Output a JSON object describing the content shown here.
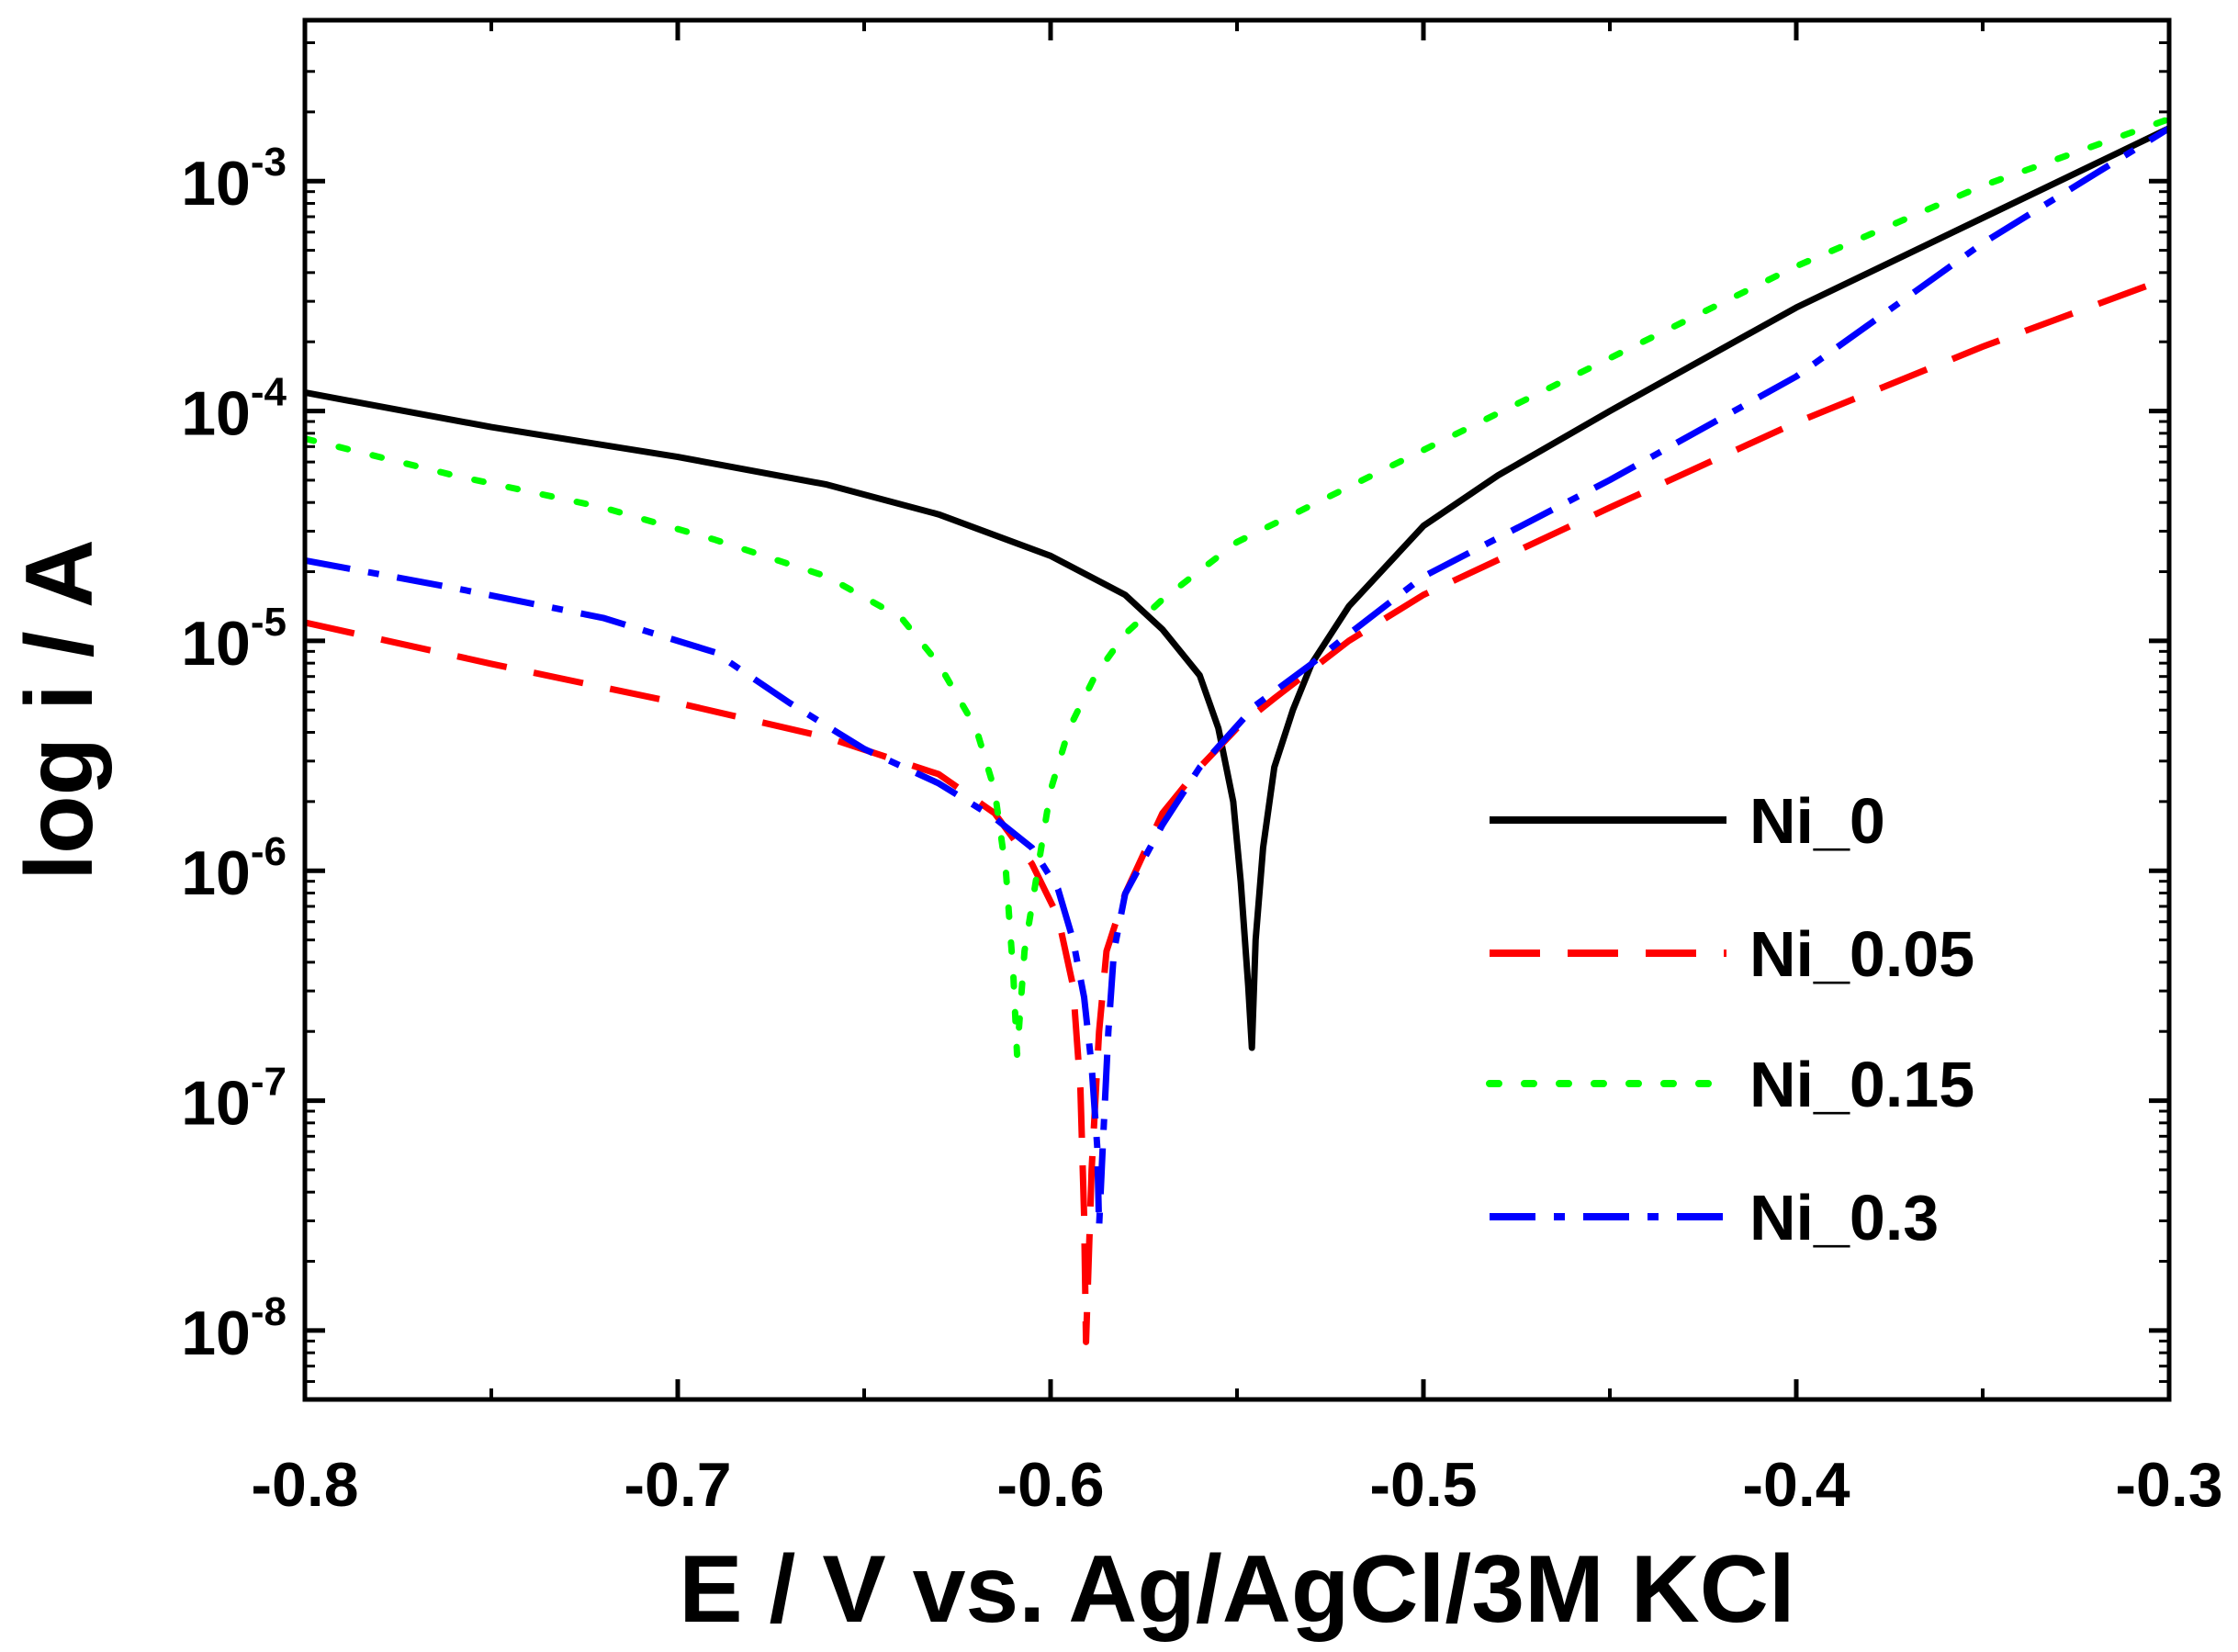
{
  "chart_data": {
    "type": "line",
    "title": "",
    "xlabel": "E /  V vs. Ag/AgCl/3M KCl",
    "ylabel": "log i  / A",
    "xlim": [
      -0.8,
      -0.3
    ],
    "ylim_log10": [
      -8.3,
      -2.3
    ],
    "y_scale": "log",
    "x_ticks": [
      -0.8,
      -0.7,
      -0.6,
      -0.5,
      -0.4,
      -0.3
    ],
    "x_tick_labels": [
      "-0.8",
      "-0.7",
      "-0.6",
      "-0.5",
      "-0.4",
      "-0.3"
    ],
    "y_ticks_log10": [
      -8,
      -7,
      -6,
      -5,
      -4,
      -3
    ],
    "y_tick_base": "10",
    "y_tick_exponents": [
      "-8",
      "-7",
      "-6",
      "-5",
      "-4",
      "-3"
    ],
    "legend_position": "right",
    "series": [
      {
        "name": "Ni_0",
        "color": "#000000",
        "style": "solid",
        "points": [
          [
            -0.8,
            -3.92
          ],
          [
            -0.75,
            -4.07
          ],
          [
            -0.7,
            -4.2
          ],
          [
            -0.66,
            -4.32
          ],
          [
            -0.63,
            -4.45
          ],
          [
            -0.6,
            -4.63
          ],
          [
            -0.58,
            -4.8
          ],
          [
            -0.57,
            -4.95
          ],
          [
            -0.56,
            -5.15
          ],
          [
            -0.555,
            -5.38
          ],
          [
            -0.551,
            -5.7
          ],
          [
            -0.549,
            -6.05
          ],
          [
            -0.547,
            -6.5
          ],
          [
            -0.546,
            -6.77
          ],
          [
            -0.545,
            -6.3
          ],
          [
            -0.543,
            -5.9
          ],
          [
            -0.54,
            -5.55
          ],
          [
            -0.535,
            -5.3
          ],
          [
            -0.53,
            -5.1
          ],
          [
            -0.52,
            -4.85
          ],
          [
            -0.5,
            -4.5
          ],
          [
            -0.48,
            -4.28
          ],
          [
            -0.45,
            -4.0
          ],
          [
            -0.4,
            -3.55
          ],
          [
            -0.35,
            -3.16
          ],
          [
            -0.3,
            -2.77
          ]
        ]
      },
      {
        "name": "Ni_0.05",
        "color": "#ff0000",
        "style": "dashed",
        "points": [
          [
            -0.8,
            -4.92
          ],
          [
            -0.75,
            -5.1
          ],
          [
            -0.7,
            -5.27
          ],
          [
            -0.66,
            -5.42
          ],
          [
            -0.63,
            -5.58
          ],
          [
            -0.615,
            -5.75
          ],
          [
            -0.605,
            -5.97
          ],
          [
            -0.598,
            -6.2
          ],
          [
            -0.594,
            -6.5
          ],
          [
            -0.592,
            -6.95
          ],
          [
            -0.591,
            -7.5
          ],
          [
            -0.5905,
            -8.05
          ],
          [
            -0.589,
            -7.3
          ],
          [
            -0.587,
            -6.7
          ],
          [
            -0.585,
            -6.35
          ],
          [
            -0.58,
            -6.1
          ],
          [
            -0.57,
            -5.75
          ],
          [
            -0.56,
            -5.55
          ],
          [
            -0.55,
            -5.38
          ],
          [
            -0.54,
            -5.25
          ],
          [
            -0.52,
            -5.0
          ],
          [
            -0.5,
            -4.8
          ],
          [
            -0.45,
            -4.42
          ],
          [
            -0.4,
            -4.05
          ],
          [
            -0.35,
            -3.72
          ],
          [
            -0.3,
            -3.42
          ]
        ]
      },
      {
        "name": "Ni_0.15",
        "color": "#00ff00",
        "style": "dotted",
        "points": [
          [
            -0.8,
            -4.12
          ],
          [
            -0.76,
            -4.28
          ],
          [
            -0.72,
            -4.42
          ],
          [
            -0.69,
            -4.56
          ],
          [
            -0.66,
            -4.72
          ],
          [
            -0.64,
            -4.9
          ],
          [
            -0.63,
            -5.1
          ],
          [
            -0.62,
            -5.38
          ],
          [
            -0.615,
            -5.65
          ],
          [
            -0.612,
            -6.0
          ],
          [
            -0.61,
            -6.45
          ],
          [
            -0.609,
            -6.8
          ],
          [
            -0.607,
            -6.35
          ],
          [
            -0.603,
            -5.95
          ],
          [
            -0.6,
            -5.65
          ],
          [
            -0.595,
            -5.38
          ],
          [
            -0.588,
            -5.15
          ],
          [
            -0.58,
            -4.97
          ],
          [
            -0.57,
            -4.82
          ],
          [
            -0.55,
            -4.57
          ],
          [
            -0.5,
            -4.17
          ],
          [
            -0.45,
            -3.77
          ],
          [
            -0.4,
            -3.37
          ],
          [
            -0.35,
            -3.02
          ],
          [
            -0.3,
            -2.73
          ]
        ]
      },
      {
        "name": "Ni_0.3",
        "color": "#0000ff",
        "style": "dashdot",
        "points": [
          [
            -0.8,
            -4.65
          ],
          [
            -0.76,
            -4.77
          ],
          [
            -0.72,
            -4.9
          ],
          [
            -0.69,
            -5.05
          ],
          [
            -0.67,
            -5.27
          ],
          [
            -0.65,
            -5.47
          ],
          [
            -0.63,
            -5.62
          ],
          [
            -0.615,
            -5.77
          ],
          [
            -0.605,
            -5.9
          ],
          [
            -0.598,
            -6.08
          ],
          [
            -0.594,
            -6.3
          ],
          [
            -0.591,
            -6.55
          ],
          [
            -0.589,
            -6.85
          ],
          [
            -0.5875,
            -7.2
          ],
          [
            -0.587,
            -7.55
          ],
          [
            -0.586,
            -7.2
          ],
          [
            -0.5845,
            -6.7
          ],
          [
            -0.583,
            -6.35
          ],
          [
            -0.58,
            -6.1
          ],
          [
            -0.57,
            -5.8
          ],
          [
            -0.56,
            -5.55
          ],
          [
            -0.545,
            -5.28
          ],
          [
            -0.53,
            -5.1
          ],
          [
            -0.52,
            -4.97
          ],
          [
            -0.5,
            -4.72
          ],
          [
            -0.45,
            -4.3
          ],
          [
            -0.4,
            -3.85
          ],
          [
            -0.35,
            -3.27
          ],
          [
            -0.3,
            -2.77
          ]
        ]
      }
    ]
  }
}
